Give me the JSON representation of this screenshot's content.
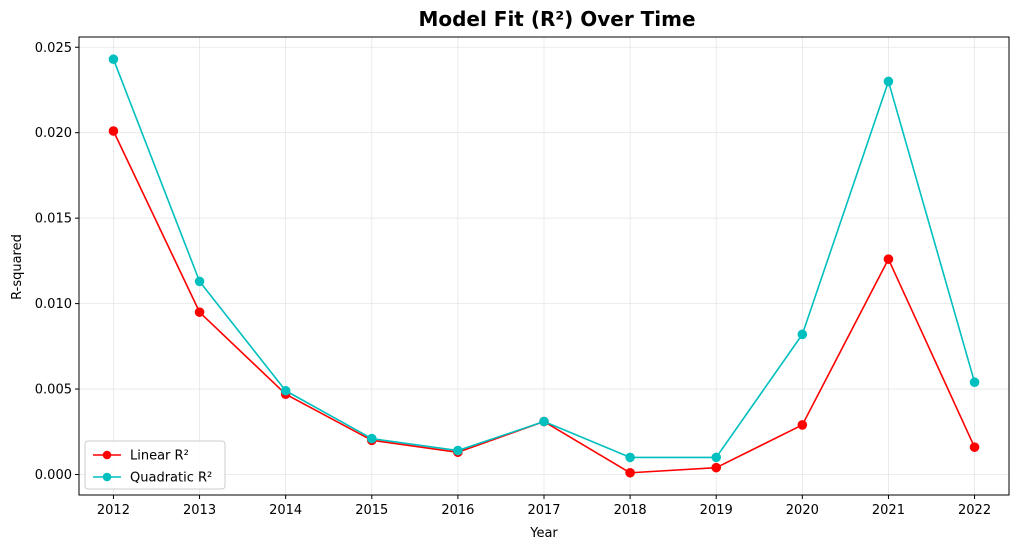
{
  "chart_data": {
    "type": "line",
    "title": "Model Fit (R²) Over Time",
    "xlabel": "Year",
    "ylabel": "R-squared",
    "x": [
      2012,
      2013,
      2014,
      2015,
      2016,
      2017,
      2018,
      2019,
      2020,
      2021,
      2022
    ],
    "x_tick_labels": [
      "2012",
      "2013",
      "2014",
      "2015",
      "2016",
      "2017",
      "2018",
      "2019",
      "2020",
      "2021",
      "2022"
    ],
    "ylim": [
      -0.0012,
      0.0256
    ],
    "y_ticks": [
      0.0,
      0.005,
      0.01,
      0.015,
      0.02,
      0.025
    ],
    "y_tick_labels": [
      "0.000",
      "0.005",
      "0.010",
      "0.015",
      "0.020",
      "0.025"
    ],
    "grid": true,
    "legend_position": "lower-left",
    "series": [
      {
        "name": "Linear R²",
        "color": "#ff0000",
        "marker": "circle",
        "values": [
          0.0201,
          0.0095,
          0.0047,
          0.002,
          0.0013,
          0.0031,
          0.0001,
          0.0004,
          0.0029,
          0.0126,
          0.0016
        ]
      },
      {
        "name": "Quadratic R²",
        "color": "#00bfbf",
        "marker": "circle",
        "values": [
          0.0243,
          0.0113,
          0.0049,
          0.0021,
          0.0014,
          0.0031,
          0.001,
          0.001,
          0.0082,
          0.023,
          0.0054
        ]
      }
    ]
  }
}
